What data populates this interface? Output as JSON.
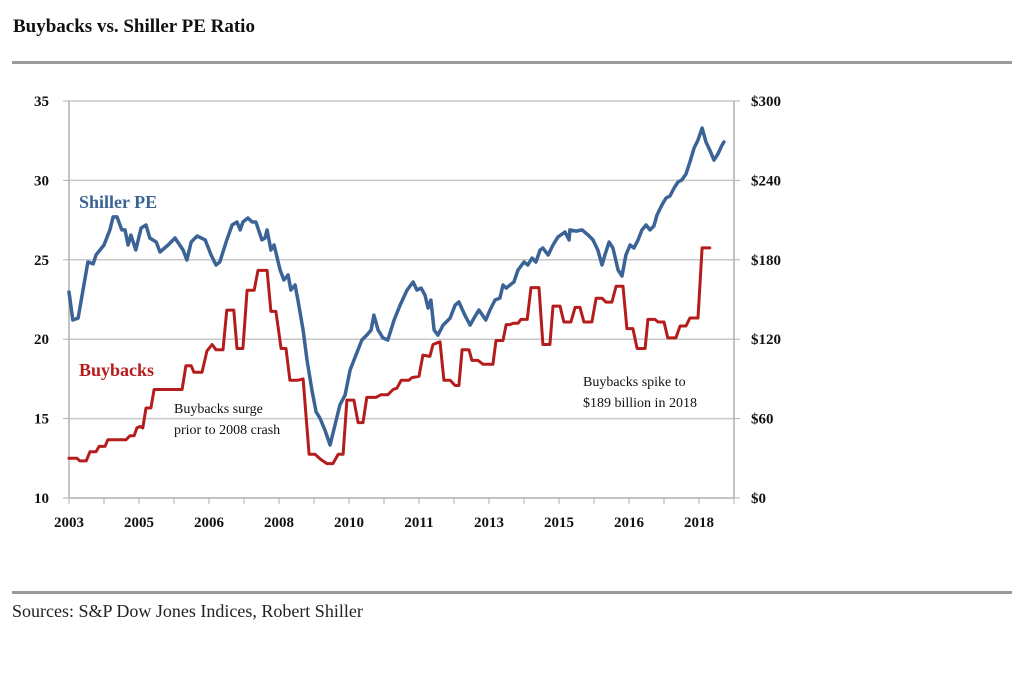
{
  "title": "Buybacks vs. Shiller PE Ratio",
  "source": "Sources: S&P Dow Jones Indices, Robert Shiller",
  "chart_data": {
    "type": "line",
    "title": "Buybacks vs. Shiller PE Ratio",
    "xlabel": "",
    "ylabel_left": "Shiller PE",
    "ylabel_right": "Buybacks ($ billions)",
    "x_unit": "tick index (0 = first tick, 19 = last tick)",
    "x_range": [
      0,
      19
    ],
    "x_tick_labels": [
      {
        "t": 0,
        "label": "2003"
      },
      {
        "t": 2,
        "label": "2005"
      },
      {
        "t": 4,
        "label": "2006"
      },
      {
        "t": 6,
        "label": "2008"
      },
      {
        "t": 8,
        "label": "2010"
      },
      {
        "t": 10,
        "label": "2011"
      },
      {
        "t": 12,
        "label": "2013"
      },
      {
        "t": 14,
        "label": "2015"
      },
      {
        "t": 16,
        "label": "2016"
      },
      {
        "t": 18,
        "label": "2018"
      }
    ],
    "x_tick_count": 20,
    "ylim_left": [
      10,
      35
    ],
    "yticks_left": [
      10,
      15,
      20,
      25,
      30,
      35
    ],
    "ylim_right": [
      0,
      300
    ],
    "yticks_right": [
      "$0",
      "$60",
      "$120",
      "$180",
      "$240",
      "$300"
    ],
    "grid": true,
    "colors": {
      "shiller": "#3b6396",
      "buybacks": "#b51c1c",
      "grid": "#c8c8c8",
      "axis": "#b0b0b0"
    },
    "series": [
      {
        "name": "Shiller PE",
        "axis": "left",
        "label": "Shiller PE",
        "points": [
          [
            0,
            22.97
          ],
          [
            0.11,
            21.21
          ],
          [
            0.26,
            21.33
          ],
          [
            0.54,
            24.86
          ],
          [
            0.69,
            24.74
          ],
          [
            0.77,
            25.3
          ],
          [
            1,
            25.93
          ],
          [
            1.17,
            26.88
          ],
          [
            1.26,
            27.7
          ],
          [
            1.37,
            27.7
          ],
          [
            1.51,
            26.88
          ],
          [
            1.6,
            26.88
          ],
          [
            1.69,
            25.93
          ],
          [
            1.77,
            26.56
          ],
          [
            1.91,
            25.62
          ],
          [
            2.06,
            27
          ],
          [
            2.2,
            27.19
          ],
          [
            2.31,
            26.37
          ],
          [
            2.49,
            26.12
          ],
          [
            2.6,
            25.49
          ],
          [
            2.83,
            25.93
          ],
          [
            3.03,
            26.37
          ],
          [
            3.26,
            25.62
          ],
          [
            3.37,
            24.99
          ],
          [
            3.49,
            26.12
          ],
          [
            3.66,
            26.5
          ],
          [
            3.89,
            26.25
          ],
          [
            4.06,
            25.3
          ],
          [
            4.2,
            24.67
          ],
          [
            4.31,
            24.86
          ],
          [
            4.51,
            26.25
          ],
          [
            4.66,
            27.19
          ],
          [
            4.8,
            27.38
          ],
          [
            4.89,
            26.88
          ],
          [
            4.97,
            27.38
          ],
          [
            5.11,
            27.63
          ],
          [
            5.23,
            27.38
          ],
          [
            5.34,
            27.38
          ],
          [
            5.51,
            26.25
          ],
          [
            5.6,
            26.37
          ],
          [
            5.66,
            26.88
          ],
          [
            5.77,
            25.62
          ],
          [
            5.86,
            25.93
          ],
          [
            6.03,
            24.36
          ],
          [
            6.14,
            23.73
          ],
          [
            6.26,
            24.04
          ],
          [
            6.34,
            23.1
          ],
          [
            6.46,
            23.41
          ],
          [
            6.54,
            22.47
          ],
          [
            6.69,
            20.58
          ],
          [
            6.8,
            18.69
          ],
          [
            6.94,
            16.8
          ],
          [
            7.06,
            15.42
          ],
          [
            7.17,
            15.04
          ],
          [
            7.31,
            14.28
          ],
          [
            7.46,
            13.34
          ],
          [
            7.6,
            14.6
          ],
          [
            7.74,
            15.86
          ],
          [
            7.89,
            16.49
          ],
          [
            8.03,
            18.06
          ],
          [
            8.2,
            19.01
          ],
          [
            8.37,
            19.95
          ],
          [
            8.51,
            20.26
          ],
          [
            8.63,
            20.58
          ],
          [
            8.71,
            21.52
          ],
          [
            8.83,
            20.58
          ],
          [
            8.97,
            20.08
          ],
          [
            9.11,
            19.95
          ],
          [
            9.29,
            21.21
          ],
          [
            9.46,
            22.15
          ],
          [
            9.66,
            23.1
          ],
          [
            9.83,
            23.6
          ],
          [
            9.94,
            23.1
          ],
          [
            10.06,
            23.22
          ],
          [
            10.17,
            22.78
          ],
          [
            10.26,
            21.96
          ],
          [
            10.34,
            22.47
          ],
          [
            10.43,
            20.58
          ],
          [
            10.54,
            20.26
          ],
          [
            10.69,
            20.89
          ],
          [
            10.89,
            21.33
          ],
          [
            11.03,
            22.15
          ],
          [
            11.14,
            22.34
          ],
          [
            11.31,
            21.52
          ],
          [
            11.46,
            20.89
          ],
          [
            11.57,
            21.33
          ],
          [
            11.71,
            21.84
          ],
          [
            11.91,
            21.21
          ],
          [
            12.03,
            21.84
          ],
          [
            12.17,
            22.47
          ],
          [
            12.31,
            22.59
          ],
          [
            12.4,
            23.41
          ],
          [
            12.49,
            23.22
          ],
          [
            12.6,
            23.41
          ],
          [
            12.71,
            23.6
          ],
          [
            12.83,
            24.36
          ],
          [
            13,
            24.86
          ],
          [
            13.11,
            24.67
          ],
          [
            13.23,
            25.11
          ],
          [
            13.34,
            24.86
          ],
          [
            13.46,
            25.62
          ],
          [
            13.54,
            25.74
          ],
          [
            13.69,
            25.3
          ],
          [
            13.83,
            25.93
          ],
          [
            13.97,
            26.44
          ],
          [
            14.17,
            26.75
          ],
          [
            14.29,
            26.25
          ],
          [
            14.31,
            26.88
          ],
          [
            14.49,
            26.81
          ],
          [
            14.66,
            26.88
          ],
          [
            14.83,
            26.56
          ],
          [
            14.97,
            26.25
          ],
          [
            15.11,
            25.62
          ],
          [
            15.23,
            24.67
          ],
          [
            15.31,
            25.3
          ],
          [
            15.43,
            26.12
          ],
          [
            15.54,
            25.74
          ],
          [
            15.69,
            24.36
          ],
          [
            15.8,
            23.98
          ],
          [
            15.91,
            25.3
          ],
          [
            16.03,
            25.93
          ],
          [
            16.14,
            25.74
          ],
          [
            16.26,
            26.25
          ],
          [
            16.37,
            26.88
          ],
          [
            16.49,
            27.19
          ],
          [
            16.6,
            26.88
          ],
          [
            16.71,
            27.13
          ],
          [
            16.8,
            27.82
          ],
          [
            16.94,
            28.45
          ],
          [
            17.06,
            28.89
          ],
          [
            17.17,
            29.02
          ],
          [
            17.29,
            29.52
          ],
          [
            17.4,
            29.9
          ],
          [
            17.51,
            30.03
          ],
          [
            17.63,
            30.4
          ],
          [
            17.74,
            31.16
          ],
          [
            17.86,
            32.04
          ],
          [
            17.97,
            32.54
          ],
          [
            18.09,
            33.3
          ],
          [
            18.2,
            32.42
          ],
          [
            18.31,
            31.91
          ],
          [
            18.43,
            31.28
          ],
          [
            18.54,
            31.66
          ],
          [
            18.66,
            32.23
          ],
          [
            18.71,
            32.42
          ]
        ]
      },
      {
        "name": "Buybacks",
        "axis": "right",
        "label": "Buybacks",
        "points": [
          [
            0,
            30
          ],
          [
            0.23,
            30
          ],
          [
            0.31,
            28
          ],
          [
            0.49,
            28
          ],
          [
            0.6,
            35
          ],
          [
            0.77,
            35
          ],
          [
            0.86,
            39
          ],
          [
            1.03,
            39
          ],
          [
            1.11,
            44
          ],
          [
            1.4,
            44
          ],
          [
            1.63,
            44
          ],
          [
            1.74,
            47
          ],
          [
            1.86,
            47
          ],
          [
            1.94,
            53
          ],
          [
            2.03,
            54
          ],
          [
            2.11,
            53
          ],
          [
            2.2,
            68
          ],
          [
            2.34,
            68
          ],
          [
            2.43,
            82
          ],
          [
            2.66,
            82
          ],
          [
            3,
            82
          ],
          [
            3.23,
            82
          ],
          [
            3.34,
            100
          ],
          [
            3.49,
            100
          ],
          [
            3.57,
            95
          ],
          [
            3.8,
            95
          ],
          [
            3.94,
            111
          ],
          [
            4.09,
            116
          ],
          [
            4.2,
            112
          ],
          [
            4.4,
            112
          ],
          [
            4.51,
            142
          ],
          [
            4.71,
            142
          ],
          [
            4.8,
            113
          ],
          [
            4.97,
            113
          ],
          [
            5.09,
            157
          ],
          [
            5.29,
            157
          ],
          [
            5.4,
            172
          ],
          [
            5.54,
            172
          ],
          [
            5.66,
            172
          ],
          [
            5.77,
            141
          ],
          [
            5.91,
            141
          ],
          [
            6.06,
            113
          ],
          [
            6.2,
            113
          ],
          [
            6.31,
            89
          ],
          [
            6.54,
            89
          ],
          [
            6.69,
            90
          ],
          [
            6.86,
            33
          ],
          [
            7.03,
            33
          ],
          [
            7.2,
            29
          ],
          [
            7.37,
            26
          ],
          [
            7.54,
            26
          ],
          [
            7.69,
            33
          ],
          [
            7.83,
            33
          ],
          [
            7.94,
            74
          ],
          [
            8.14,
            74
          ],
          [
            8.26,
            57
          ],
          [
            8.4,
            57
          ],
          [
            8.51,
            76
          ],
          [
            8.77,
            76
          ],
          [
            8.91,
            78
          ],
          [
            9.11,
            78
          ],
          [
            9.26,
            82
          ],
          [
            9.37,
            83
          ],
          [
            9.49,
            89
          ],
          [
            9.71,
            89
          ],
          [
            9.8,
            91
          ],
          [
            10,
            92
          ],
          [
            10.11,
            108
          ],
          [
            10.31,
            107
          ],
          [
            10.4,
            116
          ],
          [
            10.6,
            118
          ],
          [
            10.71,
            89
          ],
          [
            10.89,
            89
          ],
          [
            11.03,
            85
          ],
          [
            11.14,
            85
          ],
          [
            11.23,
            112
          ],
          [
            11.43,
            112
          ],
          [
            11.51,
            104
          ],
          [
            11.69,
            104
          ],
          [
            11.83,
            101
          ],
          [
            12.11,
            101
          ],
          [
            12.2,
            119
          ],
          [
            12.4,
            119
          ],
          [
            12.49,
            131
          ],
          [
            12.6,
            131
          ],
          [
            12.69,
            132
          ],
          [
            12.83,
            132
          ],
          [
            12.91,
            135
          ],
          [
            13.09,
            135
          ],
          [
            13.2,
            159
          ],
          [
            13.43,
            159
          ],
          [
            13.54,
            116
          ],
          [
            13.74,
            116
          ],
          [
            13.83,
            145
          ],
          [
            14.03,
            145
          ],
          [
            14.14,
            133
          ],
          [
            14.34,
            133
          ],
          [
            14.46,
            144
          ],
          [
            14.6,
            144
          ],
          [
            14.71,
            133
          ],
          [
            14.94,
            133
          ],
          [
            15.06,
            151
          ],
          [
            15.23,
            151
          ],
          [
            15.34,
            148
          ],
          [
            15.51,
            148
          ],
          [
            15.63,
            160
          ],
          [
            15.83,
            160
          ],
          [
            15.94,
            128
          ],
          [
            16.11,
            128
          ],
          [
            16.23,
            113
          ],
          [
            16.46,
            113
          ],
          [
            16.54,
            135
          ],
          [
            16.74,
            135
          ],
          [
            16.83,
            133
          ],
          [
            17,
            133
          ],
          [
            17.11,
            121
          ],
          [
            17.34,
            121
          ],
          [
            17.46,
            130
          ],
          [
            17.63,
            130
          ],
          [
            17.74,
            136
          ],
          [
            17.97,
            136
          ],
          [
            18.09,
            189
          ],
          [
            18.31,
            189
          ]
        ]
      }
    ],
    "annotations": [
      {
        "lines": [
          "Buybacks surge",
          "prior to 2008 crash"
        ]
      },
      {
        "lines": [
          "Buybacks spike to",
          "$189 billion in 2018"
        ]
      }
    ]
  }
}
